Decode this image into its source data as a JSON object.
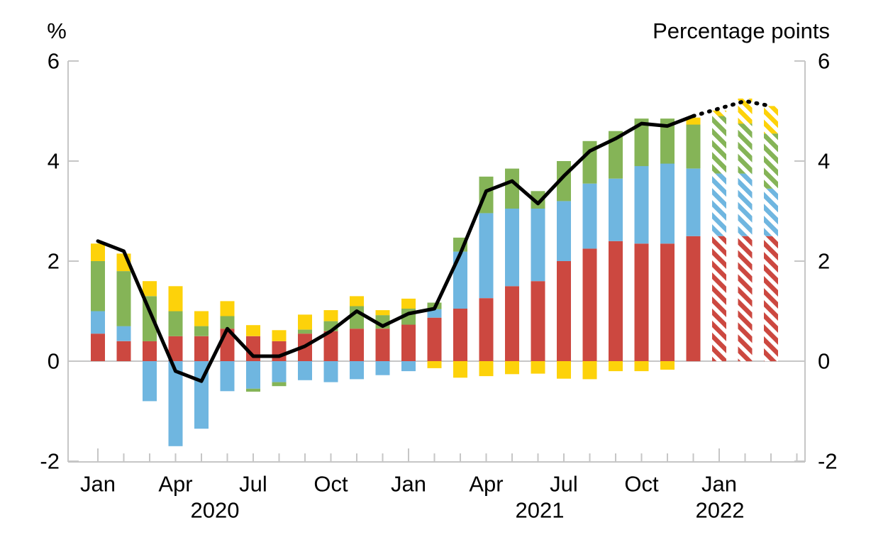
{
  "chart_data": {
    "type": "bar",
    "stacked": true,
    "title": "",
    "left_axis": {
      "unit": "%",
      "ticks": [
        6,
        4,
        2,
        0,
        -2
      ],
      "range": [
        -2,
        6
      ]
    },
    "right_axis": {
      "unit": "Percentage points",
      "ticks": [
        6,
        4,
        2,
        0,
        -2
      ],
      "range": [
        -2,
        6
      ]
    },
    "grid": "zero-line-only",
    "legend": "none-visible",
    "x": [
      "Jan 2020",
      "Feb 2020",
      "Mar 2020",
      "Apr 2020",
      "May 2020",
      "Jun 2020",
      "Jul 2020",
      "Aug 2020",
      "Sep 2020",
      "Oct 2020",
      "Nov 2020",
      "Dec 2020",
      "Jan 2021",
      "Feb 2021",
      "Mar 2021",
      "Apr 2021",
      "May 2021",
      "Jun 2021",
      "Jul 2021",
      "Aug 2021",
      "Sep 2021",
      "Oct 2021",
      "Nov 2021",
      "Dec 2021",
      "Jan 2022",
      "Feb 2022",
      "Mar 2022"
    ],
    "x_axis": {
      "month_label_indices": [
        0,
        3,
        6,
        9,
        12,
        15,
        18,
        21,
        24
      ],
      "month_labels": [
        "Jan",
        "Apr",
        "Jul",
        "Oct",
        "Jan",
        "Apr",
        "Jul",
        "Oct",
        "Jan"
      ],
      "year_labels": [
        "2020",
        "2021",
        "2022"
      ]
    },
    "forecast_start_index": 24,
    "forecast_style": "diagonal-hatch",
    "series": [
      {
        "name": "series_red",
        "color": "#cc4840",
        "values": [
          0.55,
          0.4,
          0.4,
          0.5,
          0.5,
          0.65,
          0.5,
          0.4,
          0.55,
          0.6,
          0.65,
          0.65,
          0.73,
          0.87,
          1.05,
          1.26,
          1.5,
          1.6,
          2.0,
          2.25,
          2.4,
          2.35,
          2.35,
          2.5,
          2.5,
          2.5,
          2.5
        ]
      },
      {
        "name": "series_blue",
        "color": "#6fb6e0",
        "values": [
          0.45,
          0.3,
          -0.8,
          -1.7,
          -1.35,
          -0.6,
          -0.55,
          -0.42,
          -0.38,
          -0.42,
          -0.36,
          -0.28,
          -0.2,
          0.17,
          1.14,
          1.7,
          1.55,
          1.45,
          1.2,
          1.3,
          1.25,
          1.55,
          1.6,
          1.35,
          1.25,
          1.25,
          0.95
        ]
      },
      {
        "name": "series_green",
        "color": "#85b457",
        "values": [
          1.0,
          1.1,
          0.9,
          0.5,
          0.2,
          0.25,
          -0.06,
          -0.08,
          0.08,
          0.2,
          0.45,
          0.27,
          0.32,
          0.13,
          0.28,
          0.73,
          0.8,
          0.35,
          0.8,
          0.85,
          0.95,
          0.95,
          0.9,
          0.88,
          1.15,
          1.0,
          1.1
        ]
      },
      {
        "name": "series_yellow",
        "color": "#fdd20a",
        "values": [
          0.35,
          0.35,
          0.3,
          0.5,
          0.3,
          0.3,
          0.22,
          0.22,
          0.3,
          0.22,
          0.2,
          0.1,
          0.2,
          -0.14,
          -0.33,
          -0.3,
          -0.26,
          -0.25,
          -0.35,
          -0.36,
          -0.2,
          -0.2,
          -0.17,
          0.14,
          0.11,
          0.5,
          0.55
        ]
      }
    ],
    "line": {
      "name": "total_line",
      "color": "#000000",
      "solid_to_index": 23,
      "values": [
        2.4,
        2.2,
        1.0,
        -0.2,
        -0.4,
        0.65,
        0.1,
        0.1,
        0.3,
        0.6,
        1.0,
        0.7,
        0.95,
        1.05,
        2.15,
        3.4,
        3.6,
        3.15,
        3.7,
        4.2,
        4.45,
        4.75,
        4.7,
        4.9,
        5.05,
        5.2,
        5.1
      ]
    },
    "colors": {
      "axis": "#c6c6c6",
      "zero_line": "#c6c6c6",
      "text": "#000000",
      "background": "#ffffff"
    }
  }
}
